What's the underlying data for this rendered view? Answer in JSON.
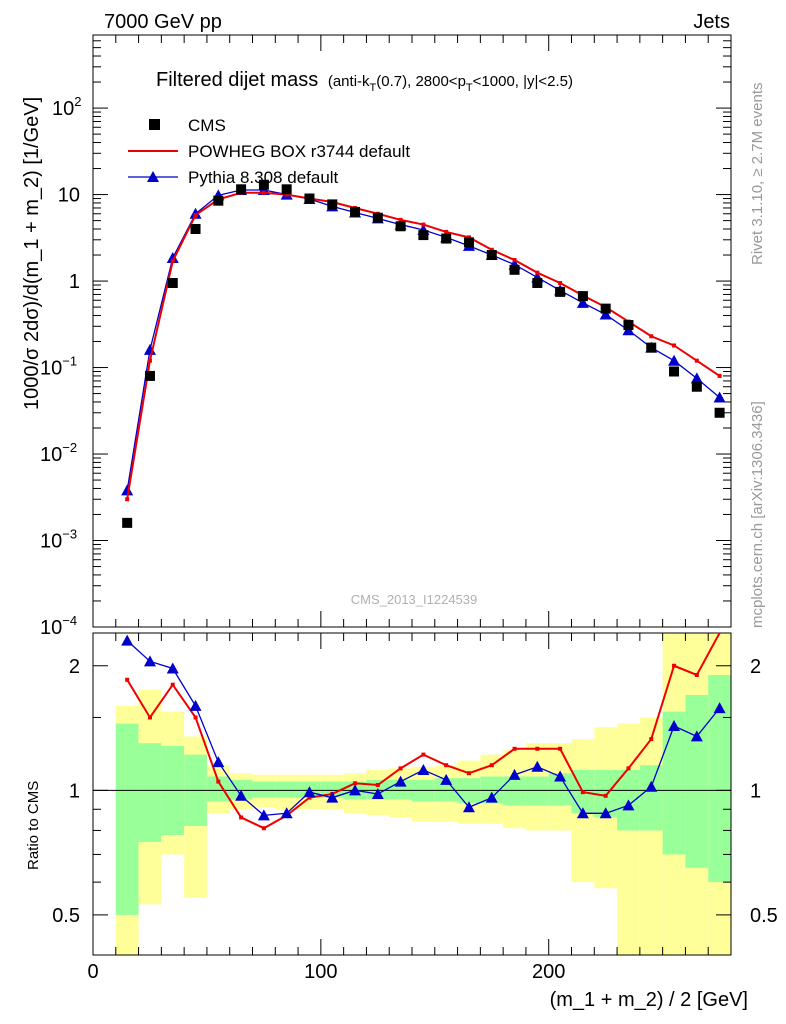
{
  "header": {
    "left": "7000 GeV pp",
    "right": "Jets"
  },
  "title": {
    "main": "Filtered dijet mass",
    "sub_pre": "(anti-k",
    "sub_T1": "T",
    "sub_mid": "(0.7), 2800<p",
    "sub_T2": "T",
    "sub_post": "<1000, |y|<2.5)"
  },
  "side_labels": {
    "rivet": "Rivet 3.1.10, ≥ 2.7M events",
    "arxiv": "mcplots.cern.ch [arXiv:1306.3436]"
  },
  "watermark": "CMS_2013_I1224539",
  "colors": {
    "cms": "#000000",
    "powheg": "#ee0000",
    "pythia": "#0000cc",
    "band_inner": "#99ff99",
    "band_outer": "#ffff99"
  },
  "chart_data": [
    {
      "type": "scatter",
      "ylabel": "1000/σ 2dσ)/d(m_1 + m_2) [1/GeV]",
      "yscale": "log",
      "ylim": [
        0.0001,
        700
      ],
      "xlim": [
        0,
        280
      ],
      "yticks": [
        {
          "v": 0.0001,
          "base": "10",
          "exp": "−4"
        },
        {
          "v": 0.001,
          "base": "10",
          "exp": "−3"
        },
        {
          "v": 0.01,
          "base": "10",
          "exp": "−2"
        },
        {
          "v": 0.1,
          "base": "10",
          "exp": "−1"
        },
        {
          "v": 1,
          "base": "1",
          "exp": ""
        },
        {
          "v": 10,
          "base": "10",
          "exp": ""
        },
        {
          "v": 100,
          "base": "10",
          "exp": "2"
        }
      ],
      "legend_position": "top-left",
      "series": [
        {
          "name": "CMS",
          "x": [
            15,
            25,
            35,
            45,
            55,
            65,
            75,
            85,
            95,
            105,
            115,
            125,
            135,
            145,
            155,
            165,
            175,
            185,
            195,
            205,
            215,
            225,
            235,
            245,
            255,
            265,
            275
          ],
          "values": [
            0.0016,
            0.08,
            0.95,
            4.0,
            8.5,
            11.5,
            13,
            11.5,
            9,
            7.7,
            6.3,
            5.4,
            4.3,
            3.4,
            3.1,
            2.8,
            2.0,
            1.35,
            0.95,
            0.75,
            0.67,
            0.48,
            0.31,
            0.17,
            0.09,
            0.06,
            0.03
          ]
        },
        {
          "name": "POWHEG BOX r3744 default",
          "x": [
            15,
            25,
            35,
            45,
            55,
            65,
            75,
            85,
            95,
            105,
            115,
            125,
            135,
            145,
            155,
            165,
            175,
            185,
            195,
            205,
            215,
            225,
            235,
            245,
            255,
            265,
            275
          ],
          "values": [
            0.003,
            0.12,
            1.7,
            5.8,
            8.8,
            10.5,
            10.5,
            10.0,
            9.0,
            8.2,
            7.0,
            6.0,
            5.1,
            4.5,
            3.7,
            3.2,
            2.3,
            1.75,
            1.25,
            0.95,
            0.68,
            0.5,
            0.34,
            0.23,
            0.18,
            0.12,
            0.08
          ]
        },
        {
          "name": "Pythia 8.308 default",
          "x": [
            15,
            25,
            35,
            45,
            55,
            65,
            75,
            85,
            95,
            105,
            115,
            125,
            135,
            145,
            155,
            165,
            175,
            185,
            195,
            205,
            215,
            225,
            235,
            245,
            255,
            265,
            275
          ],
          "values": [
            0.0038,
            0.16,
            1.85,
            6.0,
            9.8,
            11.3,
            11.3,
            10.0,
            8.9,
            7.3,
            6.2,
            5.3,
            4.5,
            3.9,
            3.2,
            2.55,
            2.0,
            1.55,
            1.1,
            0.78,
            0.56,
            0.41,
            0.27,
            0.17,
            0.12,
            0.075,
            0.045
          ]
        }
      ]
    },
    {
      "type": "line",
      "ylabel": "Ratio to CMS",
      "xlabel": "(m_1 + m_2) / 2 [GeV]",
      "yscale": "log",
      "ylim": [
        0.4,
        2.4
      ],
      "xlim": [
        0,
        280
      ],
      "xticks": [
        0,
        100,
        200
      ],
      "yticks": [
        0.5,
        1,
        2
      ],
      "bins": [
        10,
        20,
        30,
        40,
        50,
        60,
        70,
        80,
        90,
        100,
        110,
        120,
        130,
        140,
        150,
        160,
        170,
        180,
        190,
        200,
        210,
        220,
        230,
        240,
        250,
        260,
        270,
        280
      ],
      "band_inner": {
        "lo": [
          0.5,
          0.75,
          0.78,
          0.82,
          0.94,
          0.95,
          0.96,
          0.96,
          0.96,
          0.96,
          0.95,
          0.95,
          0.95,
          0.94,
          0.94,
          0.93,
          0.93,
          0.92,
          0.92,
          0.92,
          0.88,
          0.86,
          0.8,
          0.8,
          0.7,
          0.65,
          0.6
        ],
        "hi": [
          1.45,
          1.3,
          1.28,
          1.22,
          1.08,
          1.06,
          1.05,
          1.05,
          1.05,
          1.05,
          1.05,
          1.06,
          1.06,
          1.06,
          1.07,
          1.07,
          1.08,
          1.08,
          1.08,
          1.1,
          1.12,
          1.12,
          1.12,
          1.15,
          1.55,
          1.7,
          1.9
        ]
      },
      "band_outer": {
        "lo": [
          0.35,
          0.53,
          0.7,
          0.55,
          0.88,
          0.9,
          0.91,
          0.9,
          0.9,
          0.9,
          0.88,
          0.87,
          0.86,
          0.84,
          0.84,
          0.83,
          0.83,
          0.81,
          0.8,
          0.8,
          0.6,
          0.58,
          0.35,
          0.35,
          0.35,
          0.35,
          0.35
        ],
        "hi": [
          1.6,
          1.75,
          1.55,
          1.35,
          1.15,
          1.1,
          1.09,
          1.09,
          1.09,
          1.09,
          1.1,
          1.12,
          1.13,
          1.14,
          1.15,
          1.18,
          1.22,
          1.25,
          1.3,
          1.3,
          1.33,
          1.42,
          1.45,
          1.5,
          2.4,
          2.4,
          2.4
        ]
      },
      "series": [
        {
          "name": "POWHEG BOX r3744 default",
          "x": [
            15,
            25,
            35,
            45,
            55,
            65,
            75,
            85,
            95,
            105,
            115,
            125,
            135,
            145,
            155,
            165,
            175,
            185,
            195,
            205,
            215,
            225,
            235,
            245,
            255,
            265,
            275
          ],
          "values": [
            1.85,
            1.5,
            1.8,
            1.5,
            1.05,
            0.86,
            0.81,
            0.87,
            0.96,
            0.98,
            1.04,
            1.03,
            1.13,
            1.22,
            1.15,
            1.1,
            1.15,
            1.26,
            1.26,
            1.26,
            0.99,
            0.97,
            1.13,
            1.33,
            2.0,
            1.9,
            2.5
          ]
        },
        {
          "name": "Pythia 8.308 default",
          "x": [
            15,
            25,
            35,
            45,
            55,
            65,
            75,
            85,
            95,
            105,
            115,
            125,
            135,
            145,
            155,
            165,
            175,
            185,
            195,
            205,
            215,
            225,
            235,
            245,
            255,
            265,
            275
          ],
          "values": [
            2.3,
            2.05,
            1.97,
            1.6,
            1.17,
            0.97,
            0.87,
            0.88,
            0.99,
            0.96,
            1.0,
            0.98,
            1.05,
            1.12,
            1.06,
            0.91,
            0.96,
            1.09,
            1.14,
            1.08,
            0.88,
            0.88,
            0.92,
            1.02,
            1.43,
            1.35,
            1.58
          ]
        }
      ]
    }
  ]
}
